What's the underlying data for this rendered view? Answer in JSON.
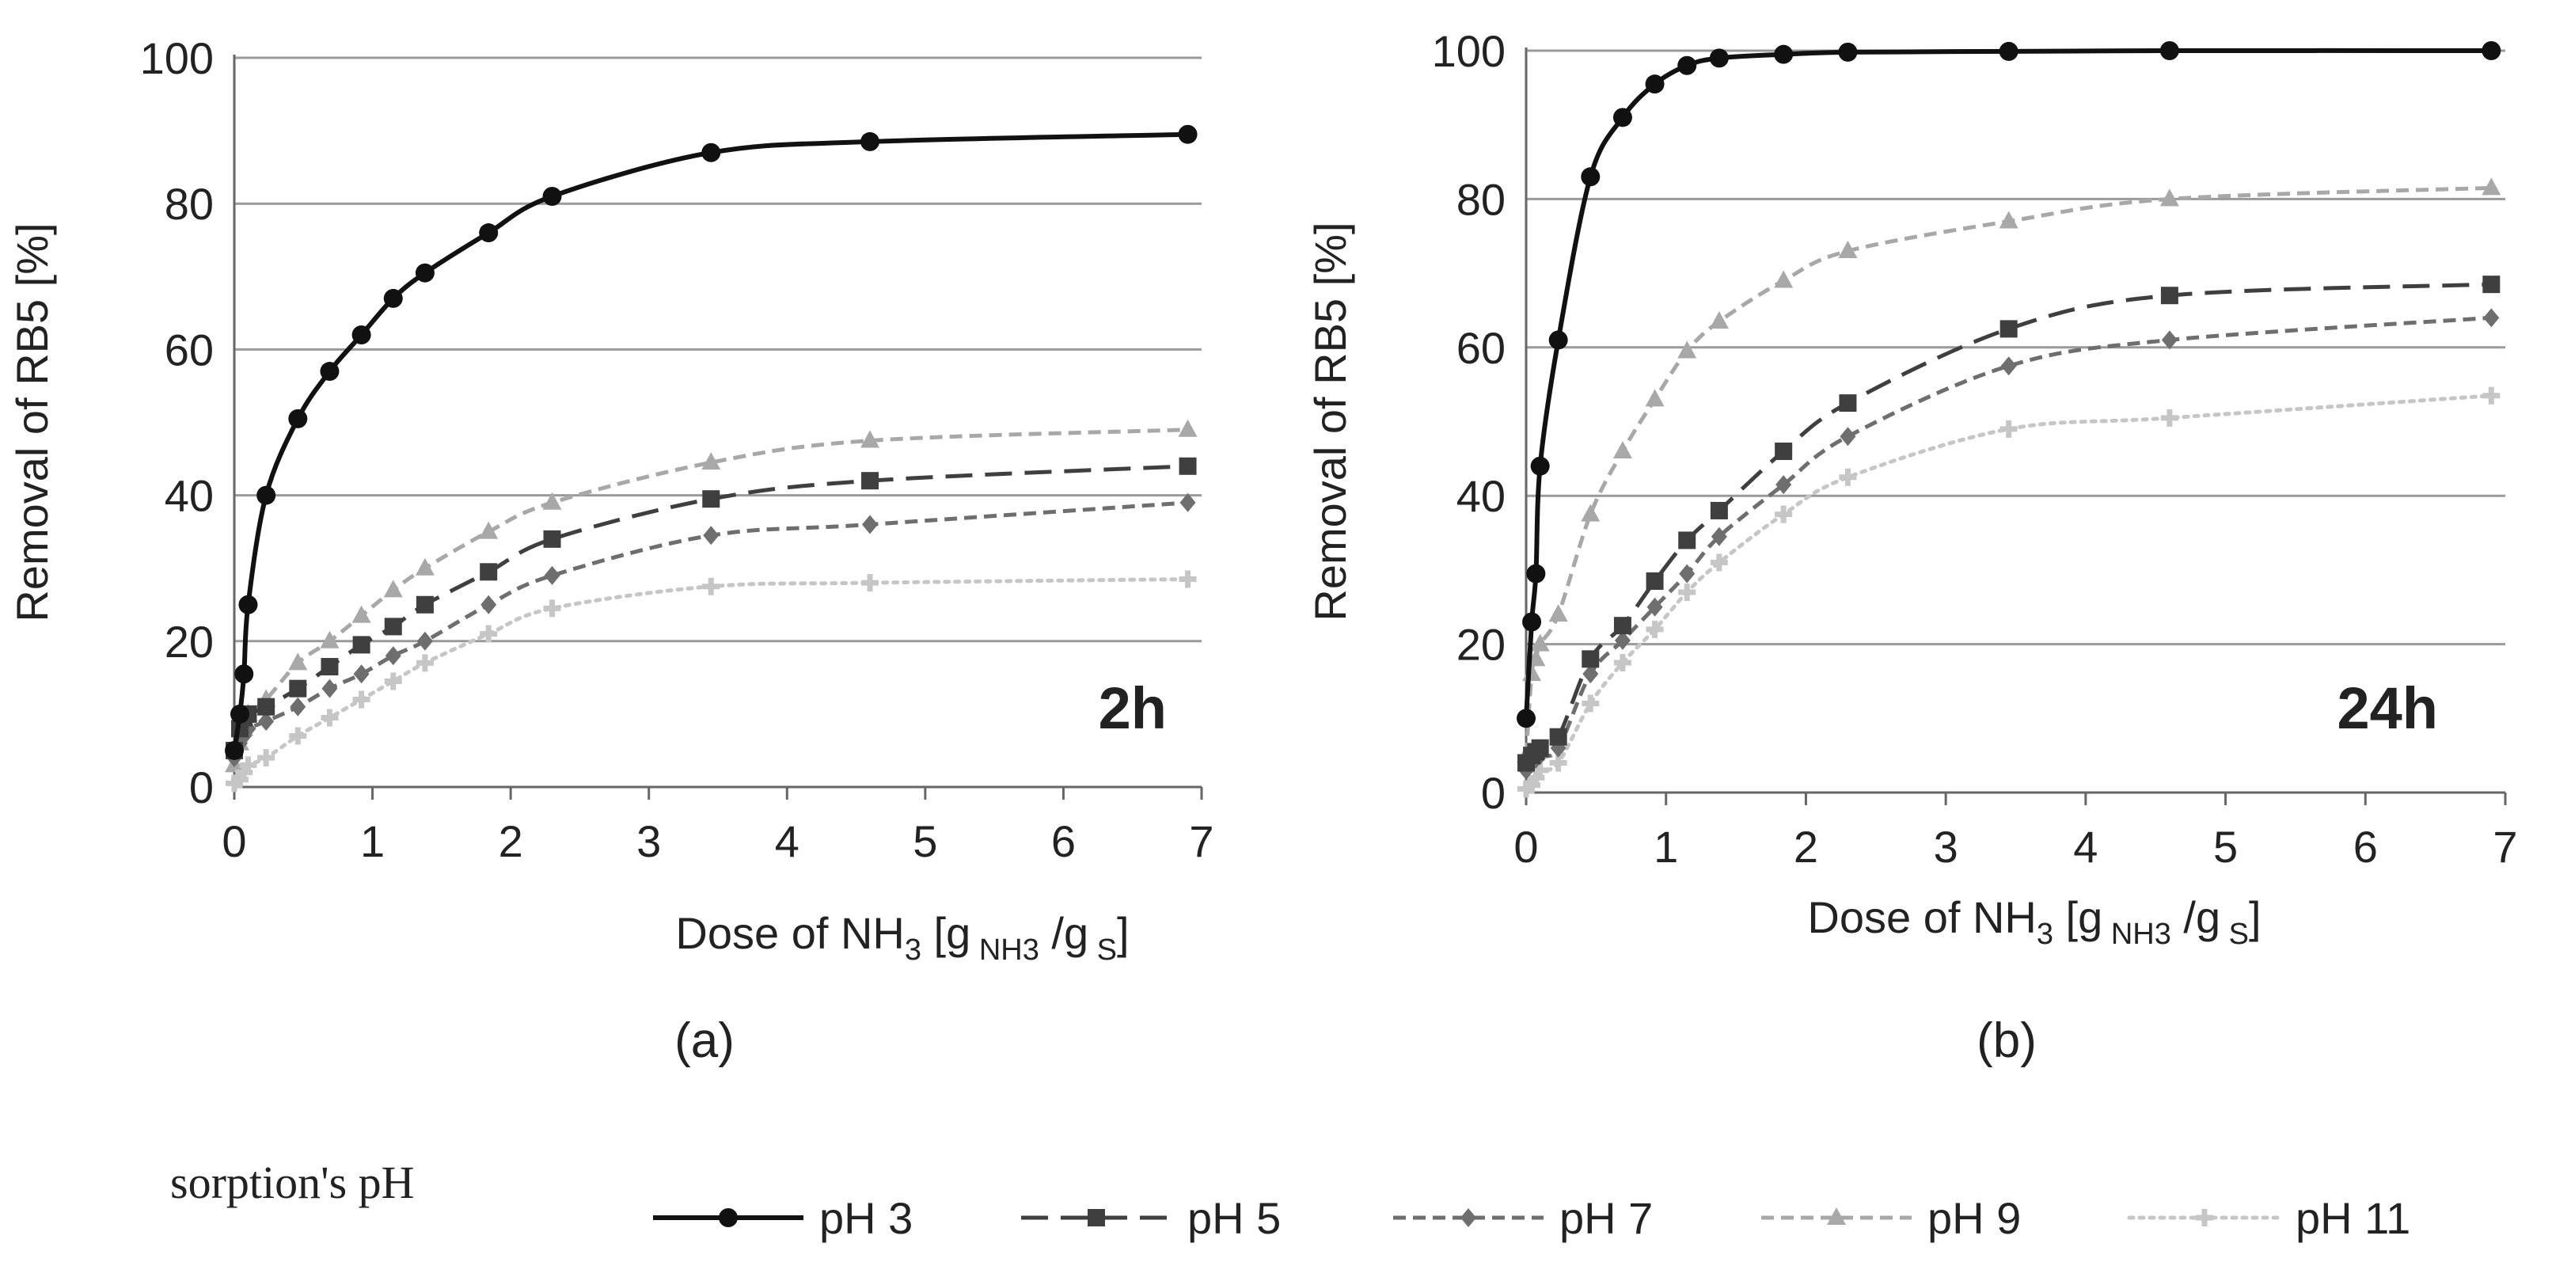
{
  "chart_data": [
    {
      "type": "line",
      "caption": "(a)",
      "annotation": "2h",
      "xlabel": {
        "pre": "Dose of NH",
        "sub1": "3",
        "mid": " [g",
        "sub2": " NH3",
        "mid2": " /g",
        "sub3": " S",
        "post": "]"
      },
      "ylabel": "Removal of RB5  [%]",
      "xlim": [
        0,
        7
      ],
      "ylim": [
        0,
        100
      ],
      "xticks": [
        "0",
        "1",
        "2",
        "3",
        "4",
        "5",
        "6",
        "7"
      ],
      "yticks": [
        "0",
        "20",
        "40",
        "60",
        "80",
        "100"
      ],
      "grid": "horizontal",
      "series": [
        {
          "name": "pH 3",
          "x": [
            0,
            0.04,
            0.07,
            0.1,
            0.23,
            0.46,
            0.69,
            0.92,
            1.15,
            1.38,
            1.84,
            2.3,
            3.45,
            4.6,
            6.9
          ],
          "y": [
            5,
            10,
            15.5,
            25,
            40,
            50.5,
            57,
            62,
            67,
            70.5,
            76,
            81,
            87,
            88.5,
            89.5
          ]
        },
        {
          "name": "pH 5",
          "x": [
            0,
            0.04,
            0.07,
            0.1,
            0.23,
            0.46,
            0.69,
            0.92,
            1.15,
            1.38,
            1.84,
            2.3,
            3.45,
            4.6,
            6.9
          ],
          "y": [
            5,
            8,
            9.5,
            10,
            11,
            13.5,
            16.5,
            19.5,
            22,
            25,
            29.5,
            34,
            39.5,
            42,
            44
          ]
        },
        {
          "name": "pH 7",
          "x": [
            0,
            0.04,
            0.07,
            0.1,
            0.23,
            0.46,
            0.69,
            0.92,
            1.15,
            1.38,
            1.84,
            2.3,
            3.45,
            4.6,
            6.9
          ],
          "y": [
            4,
            6,
            7,
            8,
            9,
            11,
            13.5,
            15.5,
            18,
            20,
            25,
            29,
            34.5,
            36,
            39
          ]
        },
        {
          "name": "pH 9",
          "x": [
            0,
            0.04,
            0.07,
            0.1,
            0.23,
            0.46,
            0.69,
            0.92,
            1.15,
            1.38,
            1.84,
            2.3,
            3.45,
            4.6,
            6.9
          ],
          "y": [
            3,
            6,
            8,
            10,
            12,
            17,
            20,
            23.5,
            27,
            30,
            35,
            39,
            44.5,
            47.5,
            49
          ]
        },
        {
          "name": "pH 11",
          "x": [
            0,
            0.04,
            0.07,
            0.1,
            0.23,
            0.46,
            0.69,
            0.92,
            1.15,
            1.38,
            1.84,
            2.3,
            3.45,
            4.6,
            6.9
          ],
          "y": [
            0.5,
            1,
            2,
            3,
            4,
            7,
            9.5,
            12,
            14.5,
            17,
            21,
            24.5,
            27.5,
            28,
            28.5
          ]
        }
      ]
    },
    {
      "type": "line",
      "caption": "(b)",
      "annotation": "24h",
      "xlabel": {
        "pre": "Dose of NH",
        "sub1": "3",
        "mid": " [g",
        "sub2": " NH3",
        "mid2": " /g",
        "sub3": " S",
        "post": "]"
      },
      "ylabel": "Removal of RB5  [%]",
      "xlim": [
        0,
        7
      ],
      "ylim": [
        0,
        100
      ],
      "xticks": [
        "0",
        "1",
        "2",
        "3",
        "4",
        "5",
        "6",
        "7"
      ],
      "yticks": [
        "0",
        "20",
        "40",
        "60",
        "80",
        "100"
      ],
      "grid": "horizontal",
      "series": [
        {
          "name": "pH 3",
          "x": [
            0,
            0.04,
            0.07,
            0.1,
            0.23,
            0.46,
            0.69,
            0.92,
            1.15,
            1.38,
            1.84,
            2.3,
            3.45,
            4.6,
            6.9
          ],
          "y": [
            10,
            23,
            29.5,
            44,
            61,
            83,
            91,
            95.5,
            98,
            99,
            99.5,
            99.8,
            99.9,
            100,
            100
          ]
        },
        {
          "name": "pH 5",
          "x": [
            0,
            0.04,
            0.07,
            0.1,
            0.23,
            0.46,
            0.69,
            0.92,
            1.15,
            1.38,
            1.84,
            2.3,
            3.45,
            4.6,
            6.9
          ],
          "y": [
            4,
            5,
            5.5,
            6,
            7.5,
            18,
            22.5,
            28.5,
            34,
            38,
            46,
            52.5,
            62.5,
            67,
            68.5
          ]
        },
        {
          "name": "pH 7",
          "x": [
            0,
            0.04,
            0.07,
            0.1,
            0.23,
            0.46,
            0.69,
            0.92,
            1.15,
            1.38,
            1.84,
            2.3,
            3.45,
            4.6,
            6.9
          ],
          "y": [
            3,
            4,
            4.5,
            5,
            6,
            16,
            20.5,
            25,
            29.5,
            34.5,
            41.5,
            48,
            57.5,
            61,
            64
          ]
        },
        {
          "name": "pH 9",
          "x": [
            0,
            0.04,
            0.07,
            0.1,
            0.23,
            0.46,
            0.69,
            0.92,
            1.15,
            1.38,
            1.84,
            2.3,
            3.45,
            4.6,
            6.9
          ],
          "y": [
            5,
            16,
            18,
            20,
            24,
            37.5,
            46,
            53,
            59.5,
            63.5,
            69,
            73,
            77,
            80,
            81.5
          ]
        },
        {
          "name": "pH 11",
          "x": [
            0,
            0.04,
            0.07,
            0.1,
            0.23,
            0.46,
            0.69,
            0.92,
            1.15,
            1.38,
            1.84,
            2.3,
            3.45,
            4.6,
            6.9
          ],
          "y": [
            0.5,
            1,
            2,
            3,
            4,
            12,
            17.5,
            22,
            27,
            31,
            37.5,
            42.5,
            49,
            50.5,
            53.5
          ]
        }
      ]
    }
  ],
  "legend": {
    "title": "sorption's pH",
    "placement": "bottom",
    "entries": [
      "pH 3",
      "pH 5",
      "pH 7",
      "pH 9",
      "pH 11"
    ]
  },
  "styles": [
    {
      "name": "pH 3",
      "color": "#111111",
      "dash": "",
      "marker": "circle"
    },
    {
      "name": "pH 5",
      "color": "#3f3f3f",
      "dash": "34 16",
      "marker": "square"
    },
    {
      "name": "pH 7",
      "color": "#6e6e6e",
      "dash": "16 9",
      "marker": "diamond"
    },
    {
      "name": "pH 9",
      "color": "#a8a8a8",
      "dash": "16 9",
      "marker": "triangle"
    },
    {
      "name": "pH 11",
      "color": "#c6c6c6",
      "dash": "5 8",
      "marker": "plus"
    }
  ],
  "colors": {
    "grid": "#9a9a9a",
    "axis": "#666666",
    "text": "#222222"
  }
}
